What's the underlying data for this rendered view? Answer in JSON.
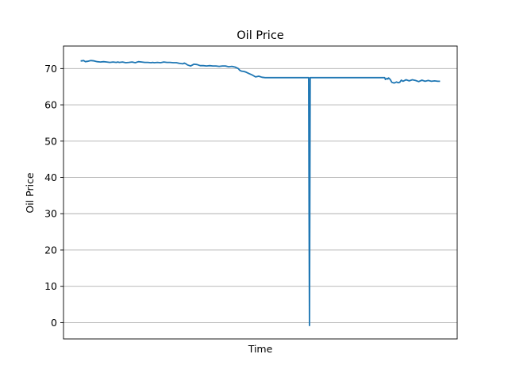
{
  "chart_data": {
    "type": "line",
    "title": "Oil Price",
    "xlabel": "Time",
    "ylabel": "Oil Price",
    "ylim": [
      -4.5,
      76.2
    ],
    "yticks": [
      0,
      10,
      20,
      30,
      40,
      50,
      60,
      70
    ],
    "xticks_visible": false,
    "grid": "y",
    "series": [
      {
        "color": "#1f77b4",
        "x": [
          0,
          3,
          5,
          8,
          12,
          16,
          20,
          24,
          28,
          32,
          36,
          40,
          44,
          46,
          48,
          52,
          56,
          60,
          64,
          68,
          72,
          76,
          80,
          84,
          88,
          90,
          92,
          96,
          100,
          104,
          108,
          112,
          116,
          120,
          124,
          128,
          130,
          132,
          134,
          138,
          142,
          146,
          150,
          154,
          158,
          162,
          166,
          170,
          174,
          178,
          182,
          186,
          190,
          194,
          198,
          200,
          202,
          205,
          208,
          212,
          216,
          220,
          224,
          228,
          232,
          236,
          240,
          244,
          248,
          252,
          256,
          260,
          264,
          268,
          270,
          272,
          276,
          280,
          284,
          287,
          287.5,
          288,
          288.5,
          289,
          292,
          300,
          320,
          340,
          360,
          380,
          383,
          384,
          386,
          387,
          388,
          390,
          392,
          395,
          398,
          400,
          402,
          404,
          406,
          410,
          414,
          418,
          422,
          426,
          430,
          434,
          438,
          442,
          446,
          450,
          452
        ],
        "y": [
          72.1,
          72.2,
          71.9,
          72.0,
          72.2,
          72.1,
          71.9,
          71.8,
          71.9,
          71.8,
          71.7,
          71.8,
          71.7,
          71.8,
          71.7,
          71.8,
          71.6,
          71.7,
          71.8,
          71.6,
          71.9,
          71.8,
          71.7,
          71.7,
          71.6,
          71.7,
          71.6,
          71.7,
          71.6,
          71.8,
          71.7,
          71.7,
          71.6,
          71.6,
          71.4,
          71.3,
          71.5,
          71.3,
          71.0,
          70.7,
          71.2,
          71.1,
          70.8,
          70.8,
          70.7,
          70.8,
          70.7,
          70.7,
          70.6,
          70.7,
          70.7,
          70.5,
          70.6,
          70.4,
          70.0,
          69.5,
          69.3,
          69.2,
          69.0,
          68.6,
          68.2,
          67.7,
          67.9,
          67.6,
          67.5,
          67.5,
          67.5,
          67.5,
          67.5,
          67.5,
          67.5,
          67.5,
          67.5,
          67.5,
          67.5,
          67.5,
          67.5,
          67.5,
          67.5,
          67.5,
          30.0,
          -0.8,
          30.0,
          67.5,
          67.5,
          67.5,
          67.5,
          67.5,
          67.5,
          67.5,
          67.5,
          67.0,
          67.3,
          67.1,
          67.4,
          67.0,
          66.2,
          66.0,
          66.3,
          66.1,
          66.2,
          66.8,
          66.5,
          66.9,
          66.6,
          66.9,
          66.7,
          66.4,
          66.8,
          66.5,
          66.7,
          66.5,
          66.6,
          66.5,
          66.5
        ]
      }
    ]
  }
}
